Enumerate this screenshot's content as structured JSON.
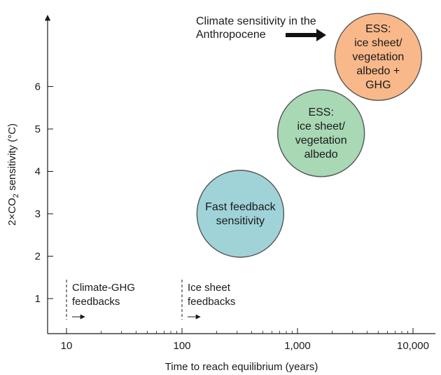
{
  "chart_data": {
    "type": "bubble",
    "x_scale": "log",
    "xlabel": "Time to reach equilibrium (years)",
    "ylabel_parts": [
      "2×CO",
      "2",
      " sensitivity (°C)"
    ],
    "x_ticks": [
      {
        "value": 10,
        "label": "10"
      },
      {
        "value": 100,
        "label": "100"
      },
      {
        "value": 1000,
        "label": "1,000"
      },
      {
        "value": 10000,
        "label": "10,000"
      }
    ],
    "y_ticks": [
      {
        "value": 1,
        "label": "1"
      },
      {
        "value": 2,
        "label": "2"
      },
      {
        "value": 3,
        "label": "3"
      },
      {
        "value": 4,
        "label": "4"
      },
      {
        "value": 5,
        "label": "5"
      },
      {
        "value": 6,
        "label": "6"
      }
    ],
    "bubbles": [
      {
        "name": "fast-feedback",
        "x": 320,
        "y": 3.0,
        "lines": [
          "Fast feedback",
          "sensitivity"
        ],
        "color": "#9fd3d8"
      },
      {
        "name": "ess-albedo",
        "x": 1600,
        "y": 4.9,
        "lines": [
          "ESS:",
          "ice sheet/",
          "vegetation",
          "albedo"
        ],
        "color": "#a8d8b4"
      },
      {
        "name": "ess-albedo-ghg",
        "x": 5000,
        "y": 6.7,
        "lines": [
          "ESS:",
          "ice sheet/",
          "vegetation",
          "albedo +",
          "GHG"
        ],
        "color": "#f9b88a"
      }
    ],
    "annotations": [
      {
        "name": "climate-ghg-feedbacks",
        "x": 10,
        "lines": [
          "Climate-GHG",
          "feedbacks"
        ]
      },
      {
        "name": "ice-sheet-feedbacks",
        "x": 100,
        "lines": [
          "Ice sheet",
          "feedbacks"
        ]
      }
    ],
    "anthropocene_label": [
      "Climate sensitivity in the",
      "Anthropocene"
    ]
  }
}
